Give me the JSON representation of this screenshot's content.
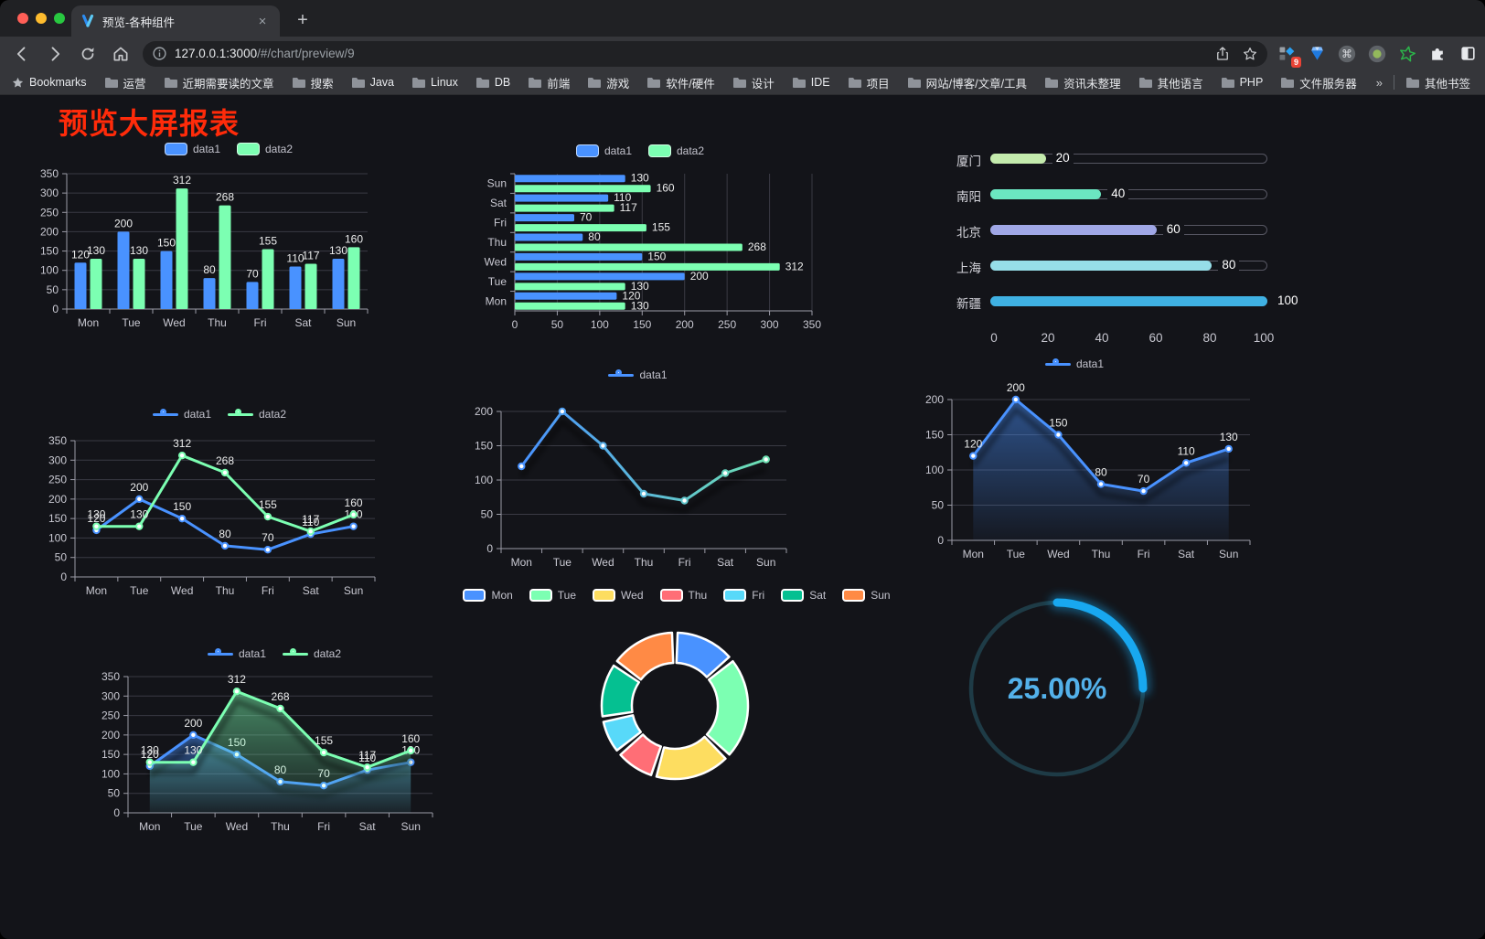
{
  "browser": {
    "tab": {
      "title": "预览-各种组件",
      "close_glyph": "×"
    },
    "new_tab_glyph": "+",
    "url_host": "127.0.0.1:3000",
    "url_path": "/#/chart/preview/9",
    "url_full": "127.0.0.1:3000/#/chart/preview/9",
    "extension_badge": "9",
    "bookmarks_label": "Bookmarks",
    "bookmarks": [
      "运营",
      "近期需要读的文章",
      "搜索",
      "Java",
      "Linux",
      "DB",
      "前端",
      "游戏",
      "软件/硬件",
      "设计",
      "IDE",
      "项目",
      "网站/博客/文章/工具",
      "资讯未整理",
      "其他语言",
      "PHP",
      "文件服务器"
    ],
    "bookmarks_overflow_glyph": "»",
    "other_bookmarks_label": "其他书签"
  },
  "page": {
    "title": "预览大屏报表",
    "title_color": "#ff2b0a",
    "background": "#131419"
  },
  "palette": {
    "data1": "#4992ff",
    "data2": "#7cffb2"
  },
  "chart_data": [
    {
      "name": "grouped-bar-vertical",
      "type": "bar",
      "categories": [
        "Mon",
        "Tue",
        "Wed",
        "Thu",
        "Fri",
        "Sat",
        "Sun"
      ],
      "series": [
        {
          "name": "data1",
          "color": "#4992ff",
          "values": [
            120,
            200,
            150,
            80,
            70,
            110,
            130
          ]
        },
        {
          "name": "data2",
          "color": "#7cffb2",
          "values": [
            130,
            130,
            312,
            268,
            155,
            117,
            160
          ]
        }
      ],
      "ylim": [
        0,
        350
      ],
      "ytick_step": 50,
      "legend": [
        "data1",
        "data2"
      ],
      "labels": true,
      "grid": true
    },
    {
      "name": "grouped-bar-horizontal",
      "type": "bar-horizontal",
      "categories": [
        "Mon",
        "Tue",
        "Wed",
        "Thu",
        "Fri",
        "Sat",
        "Sun"
      ],
      "display_order_top_to_bottom": [
        "Sun",
        "Sat",
        "Fri",
        "Thu",
        "Wed",
        "Tue",
        "Mon"
      ],
      "series": [
        {
          "name": "data1",
          "color": "#4992ff",
          "values": [
            120,
            200,
            150,
            80,
            70,
            110,
            130
          ]
        },
        {
          "name": "data2",
          "color": "#7cffb2",
          "values": [
            130,
            130,
            312,
            268,
            155,
            117,
            160
          ]
        }
      ],
      "xlim": [
        0,
        350
      ],
      "xtick_step": 50,
      "legend": [
        "data1",
        "data2"
      ],
      "labels": true,
      "grid": true
    },
    {
      "name": "capsule-progress",
      "type": "capsule",
      "categories": [
        "厦门",
        "南阳",
        "北京",
        "上海",
        "新疆"
      ],
      "values": [
        20,
        40,
        60,
        80,
        100
      ],
      "colors": [
        "#c4ebad",
        "#6be6c1",
        "#a0a7e6",
        "#96dee8",
        "#3fb1e3"
      ],
      "xticks": [
        0,
        20,
        40,
        60,
        80,
        100
      ],
      "xlim": [
        0,
        100
      ]
    },
    {
      "name": "line-two-series",
      "type": "line",
      "categories": [
        "Mon",
        "Tue",
        "Wed",
        "Thu",
        "Fri",
        "Sat",
        "Sun"
      ],
      "series": [
        {
          "name": "data1",
          "color": "#4992ff",
          "values": [
            120,
            200,
            150,
            80,
            70,
            110,
            130
          ]
        },
        {
          "name": "data2",
          "color": "#7cffb2",
          "values": [
            130,
            130,
            312,
            268,
            155,
            117,
            160
          ]
        }
      ],
      "ylim": [
        0,
        350
      ],
      "ytick_step": 50,
      "legend": [
        "data1",
        "data2"
      ],
      "labels": true,
      "grid": true
    },
    {
      "name": "line-gradient-single",
      "type": "line",
      "categories": [
        "Mon",
        "Tue",
        "Wed",
        "Thu",
        "Fri",
        "Sat",
        "Sun"
      ],
      "series": [
        {
          "name": "data1",
          "color": "#4992ff",
          "gradient": [
            "#4992ff",
            "#6de0b2"
          ],
          "values": [
            120,
            200,
            150,
            80,
            70,
            110,
            130
          ]
        }
      ],
      "ylim": [
        0,
        200
      ],
      "ytick_step": 50,
      "legend": [
        "data1"
      ],
      "labels": false,
      "grid": true
    },
    {
      "name": "line-area-single",
      "type": "line",
      "categories": [
        "Mon",
        "Tue",
        "Wed",
        "Thu",
        "Fri",
        "Sat",
        "Sun"
      ],
      "series": [
        {
          "name": "data1",
          "color": "#4992ff",
          "area": true,
          "values": [
            120,
            200,
            150,
            80,
            70,
            110,
            130
          ]
        }
      ],
      "ylim": [
        0,
        200
      ],
      "ytick_step": 50,
      "legend": [
        "data1"
      ],
      "labels": true,
      "grid": true
    },
    {
      "name": "line-area-two-series",
      "type": "line",
      "categories": [
        "Mon",
        "Tue",
        "Wed",
        "Thu",
        "Fri",
        "Sat",
        "Sun"
      ],
      "series": [
        {
          "name": "data1",
          "color": "#4992ff",
          "area": true,
          "values": [
            120,
            200,
            150,
            80,
            70,
            110,
            130
          ]
        },
        {
          "name": "data2",
          "color": "#7cffb2",
          "area": true,
          "values": [
            130,
            130,
            312,
            268,
            155,
            117,
            160
          ]
        }
      ],
      "ylim": [
        0,
        350
      ],
      "ytick_step": 50,
      "legend": [
        "data1",
        "data2"
      ],
      "labels": true,
      "grid": true
    },
    {
      "name": "donut-pie",
      "type": "pie",
      "categories": [
        "Mon",
        "Tue",
        "Wed",
        "Thu",
        "Fri",
        "Sat",
        "Sun"
      ],
      "values": [
        120,
        200,
        150,
        80,
        70,
        110,
        130
      ],
      "colors": [
        "#4992ff",
        "#7cffb2",
        "#fddd60",
        "#ff6e76",
        "#58d9f9",
        "#05c091",
        "#ff8a45"
      ],
      "legend": [
        "Mon",
        "Tue",
        "Wed",
        "Thu",
        "Fri",
        "Sat",
        "Sun"
      ]
    },
    {
      "name": "ring-progress-gauge",
      "type": "gauge",
      "value": 25,
      "max": 100,
      "label": "25.00%",
      "color": "#18a8f0",
      "track_color": "#1e3b46",
      "text_color": "#53b1ea"
    }
  ]
}
